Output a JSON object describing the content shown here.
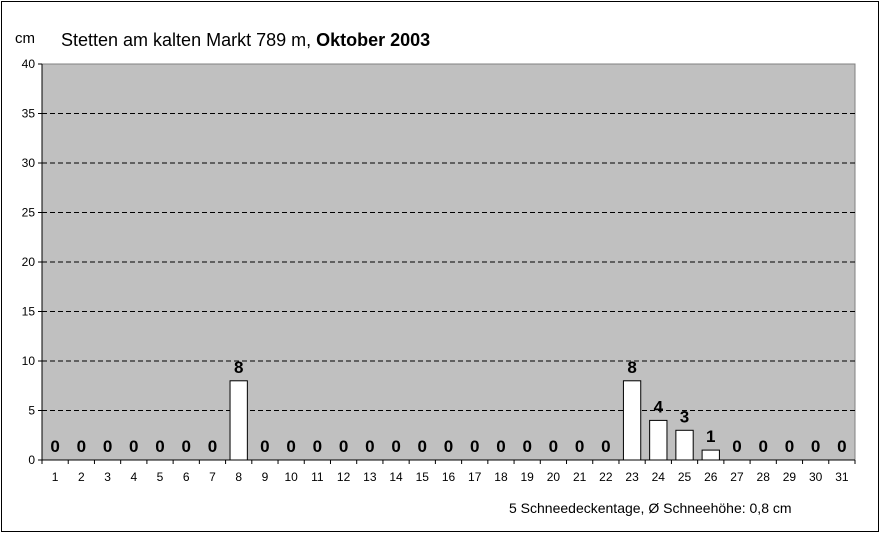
{
  "chart_data": {
    "type": "bar",
    "title_prefix": "Stetten am kalten Markt 789 m, ",
    "title_bold": "Oktober 2003",
    "ylabel": "cm",
    "ylim": [
      0,
      40
    ],
    "yticks": [
      0,
      5,
      10,
      15,
      20,
      25,
      30,
      35,
      40
    ],
    "grid": "horizontal-dashed",
    "categories": [
      "1",
      "2",
      "3",
      "4",
      "5",
      "6",
      "7",
      "8",
      "9",
      "10",
      "11",
      "12",
      "13",
      "14",
      "15",
      "16",
      "17",
      "18",
      "19",
      "20",
      "21",
      "22",
      "23",
      "24",
      "25",
      "26",
      "27",
      "28",
      "29",
      "30",
      "31"
    ],
    "values": [
      0,
      0,
      0,
      0,
      0,
      0,
      0,
      8,
      0,
      0,
      0,
      0,
      0,
      0,
      0,
      0,
      0,
      0,
      0,
      0,
      0,
      0,
      8,
      4,
      3,
      1,
      0,
      0,
      0,
      0,
      0
    ],
    "footer": "5 Schneedeckentage,  Ø Schneehöhe:  0,8 cm",
    "colors": {
      "plot_background": "#c0c0c0",
      "bar_fill": "#ffffff",
      "bar_stroke": "#000000",
      "gridline": "#000000"
    }
  }
}
